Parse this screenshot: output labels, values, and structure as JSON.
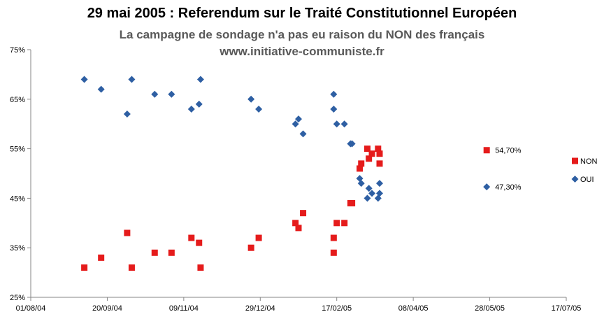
{
  "chart_data": {
    "type": "scatter",
    "title": "29 mai 2005 : Referendum sur le Traité Constitutionnel Européen",
    "subtitle": "La campagne de sondage n'a pas eu raison du NON des français",
    "subtitle2": "www.initiative-communiste.fr",
    "x_range": [
      "2004-08-01",
      "2005-07-17"
    ],
    "x_ticks": [
      "01/08/04",
      "20/09/04",
      "09/11/04",
      "29/12/04",
      "17/02/05",
      "08/04/05",
      "28/05/05",
      "17/07/05"
    ],
    "ylim": [
      0.25,
      0.75
    ],
    "y_ticks": [
      "25%",
      "35%",
      "45%",
      "55%",
      "65%",
      "75%"
    ],
    "legend_position": "right",
    "series": [
      {
        "name": "NON",
        "color": "#e51b1b",
        "marker": "square",
        "points": [
          [
            "2004-09-05",
            0.31
          ],
          [
            "2004-09-16",
            0.33
          ],
          [
            "2004-10-03",
            0.38
          ],
          [
            "2004-10-06",
            0.31
          ],
          [
            "2004-10-21",
            0.34
          ],
          [
            "2004-11-01",
            0.34
          ],
          [
            "2004-11-14",
            0.37
          ],
          [
            "2004-11-19",
            0.36
          ],
          [
            "2004-11-20",
            0.31
          ],
          [
            "2004-12-23",
            0.35
          ],
          [
            "2004-12-28",
            0.37
          ],
          [
            "2005-01-21",
            0.4
          ],
          [
            "2005-01-23",
            0.39
          ],
          [
            "2005-01-26",
            0.42
          ],
          [
            "2005-02-15",
            0.37
          ],
          [
            "2005-02-15",
            0.34
          ],
          [
            "2005-02-17",
            0.4
          ],
          [
            "2005-02-22",
            0.4
          ],
          [
            "2005-02-26",
            0.44
          ],
          [
            "2005-02-27",
            0.44
          ],
          [
            "2005-03-04",
            0.51
          ],
          [
            "2005-03-05",
            0.52
          ],
          [
            "2005-03-09",
            0.55
          ],
          [
            "2005-03-10",
            0.53
          ],
          [
            "2005-03-12",
            0.54
          ],
          [
            "2005-03-16",
            0.55
          ],
          [
            "2005-03-17",
            0.54
          ],
          [
            "2005-03-17",
            0.52
          ],
          [
            "2005-05-26",
            0.547
          ]
        ]
      },
      {
        "name": "OUI",
        "color": "#2e5fa3",
        "marker": "diamond",
        "points": [
          [
            "2004-09-05",
            0.69
          ],
          [
            "2004-09-16",
            0.67
          ],
          [
            "2004-10-03",
            0.62
          ],
          [
            "2004-10-06",
            0.69
          ],
          [
            "2004-10-21",
            0.66
          ],
          [
            "2004-11-01",
            0.66
          ],
          [
            "2004-11-14",
            0.63
          ],
          [
            "2004-11-19",
            0.64
          ],
          [
            "2004-11-20",
            0.69
          ],
          [
            "2004-12-23",
            0.65
          ],
          [
            "2004-12-28",
            0.63
          ],
          [
            "2005-01-21",
            0.6
          ],
          [
            "2005-01-23",
            0.61
          ],
          [
            "2005-01-26",
            0.58
          ],
          [
            "2005-02-15",
            0.66
          ],
          [
            "2005-02-15",
            0.63
          ],
          [
            "2005-02-17",
            0.6
          ],
          [
            "2005-02-22",
            0.6
          ],
          [
            "2005-02-26",
            0.56
          ],
          [
            "2005-02-27",
            0.56
          ],
          [
            "2005-03-04",
            0.49
          ],
          [
            "2005-03-05",
            0.48
          ],
          [
            "2005-03-09",
            0.45
          ],
          [
            "2005-03-10",
            0.47
          ],
          [
            "2005-03-12",
            0.46
          ],
          [
            "2005-03-16",
            0.45
          ],
          [
            "2005-03-17",
            0.46
          ],
          [
            "2005-03-17",
            0.48
          ],
          [
            "2005-05-26",
            0.473
          ]
        ]
      }
    ],
    "annotations": [
      {
        "series": "NON",
        "text": "54,70%"
      },
      {
        "series": "OUI",
        "text": "47,30%"
      }
    ]
  }
}
